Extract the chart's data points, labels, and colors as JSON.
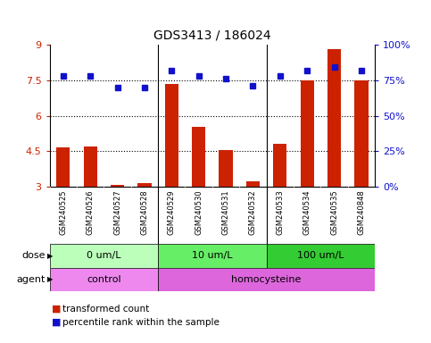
{
  "title": "GDS3413 / 186024",
  "samples": [
    "GSM240525",
    "GSM240526",
    "GSM240527",
    "GSM240528",
    "GSM240529",
    "GSM240530",
    "GSM240531",
    "GSM240532",
    "GSM240533",
    "GSM240534",
    "GSM240535",
    "GSM240848"
  ],
  "red_values": [
    4.65,
    4.72,
    3.1,
    3.15,
    7.35,
    5.55,
    4.55,
    3.25,
    4.8,
    7.5,
    8.8,
    7.5
  ],
  "blue_values": [
    78,
    78,
    70,
    70,
    82,
    78,
    76,
    71,
    78,
    82,
    84,
    82
  ],
  "ylim_left": [
    3,
    9
  ],
  "ylim_right": [
    0,
    100
  ],
  "yticks_left": [
    3,
    4.5,
    6,
    7.5,
    9
  ],
  "yticks_right": [
    0,
    25,
    50,
    75,
    100
  ],
  "ytick_labels_left": [
    "3",
    "4.5",
    "6",
    "7.5",
    "9"
  ],
  "ytick_labels_right": [
    "0%",
    "25%",
    "50%",
    "75%",
    "100%"
  ],
  "hlines": [
    4.5,
    6.0,
    7.5
  ],
  "group_boundaries": [
    3.5,
    7.5
  ],
  "dose_groups": [
    {
      "label": "0 um/L",
      "start": 0,
      "end": 4,
      "color": "#bbffbb"
    },
    {
      "label": "10 um/L",
      "start": 4,
      "end": 8,
      "color": "#66ee66"
    },
    {
      "label": "100 um/L",
      "start": 8,
      "end": 12,
      "color": "#33cc33"
    }
  ],
  "agent_groups": [
    {
      "label": "control",
      "start": 0,
      "end": 4,
      "color": "#ee88ee"
    },
    {
      "label": "homocysteine",
      "start": 4,
      "end": 12,
      "color": "#dd66dd"
    }
  ],
  "red_color": "#cc2200",
  "blue_color": "#1111cc",
  "bar_width": 0.5,
  "background_color": "#ffffff",
  "plot_bg_color": "#ffffff",
  "xticklabel_bg": "#cccccc",
  "legend_items": [
    "transformed count",
    "percentile rank within the sample"
  ],
  "legend_colors": [
    "#cc2200",
    "#1111cc"
  ]
}
